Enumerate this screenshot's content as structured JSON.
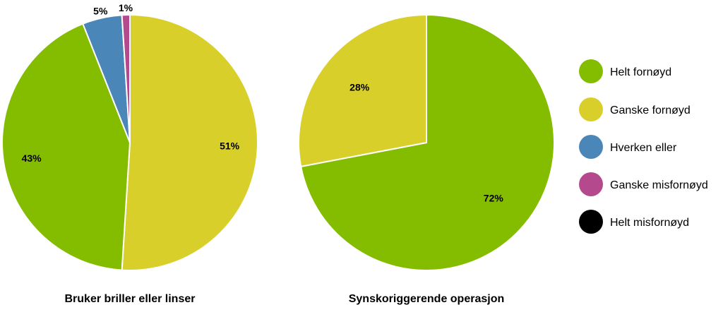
{
  "chart_data": [
    {
      "type": "pie",
      "title": "Bruker briller eller linser",
      "categories": [
        "Helt fornøyd",
        "Ganske fornøyd",
        "Hverken eller",
        "Ganske misfornøyd",
        "Helt misfornøyd"
      ],
      "values": [
        43,
        51,
        5,
        1,
        0
      ],
      "labels": [
        "43%",
        "51%",
        "5%",
        "1%",
        ""
      ],
      "order": "clockwise-from-top",
      "start_category": "Ganske fornøyd"
    },
    {
      "type": "pie",
      "title": "Synskoriggerende operasjon",
      "categories": [
        "Helt fornøyd",
        "Ganske fornøyd",
        "Hverken eller",
        "Ganske misfornøyd",
        "Helt misfornøyd"
      ],
      "values": [
        72,
        28,
        0,
        0,
        0
      ],
      "labels": [
        "72%",
        "28%",
        "",
        "",
        ""
      ],
      "order": "clockwise-from-top",
      "start_category": "Helt fornøyd"
    }
  ],
  "legend": {
    "placement": "right",
    "items": [
      {
        "label": "Helt fornøyd",
        "color": "#84bd00"
      },
      {
        "label": "Ganske fornøyd",
        "color": "#d9cf2b"
      },
      {
        "label": "Hverken eller",
        "color": "#4a86b8"
      },
      {
        "label": "Ganske misfornøyd",
        "color": "#b4498e"
      },
      {
        "label": "Helt misfornøyd",
        "color": "#000000"
      }
    ]
  }
}
